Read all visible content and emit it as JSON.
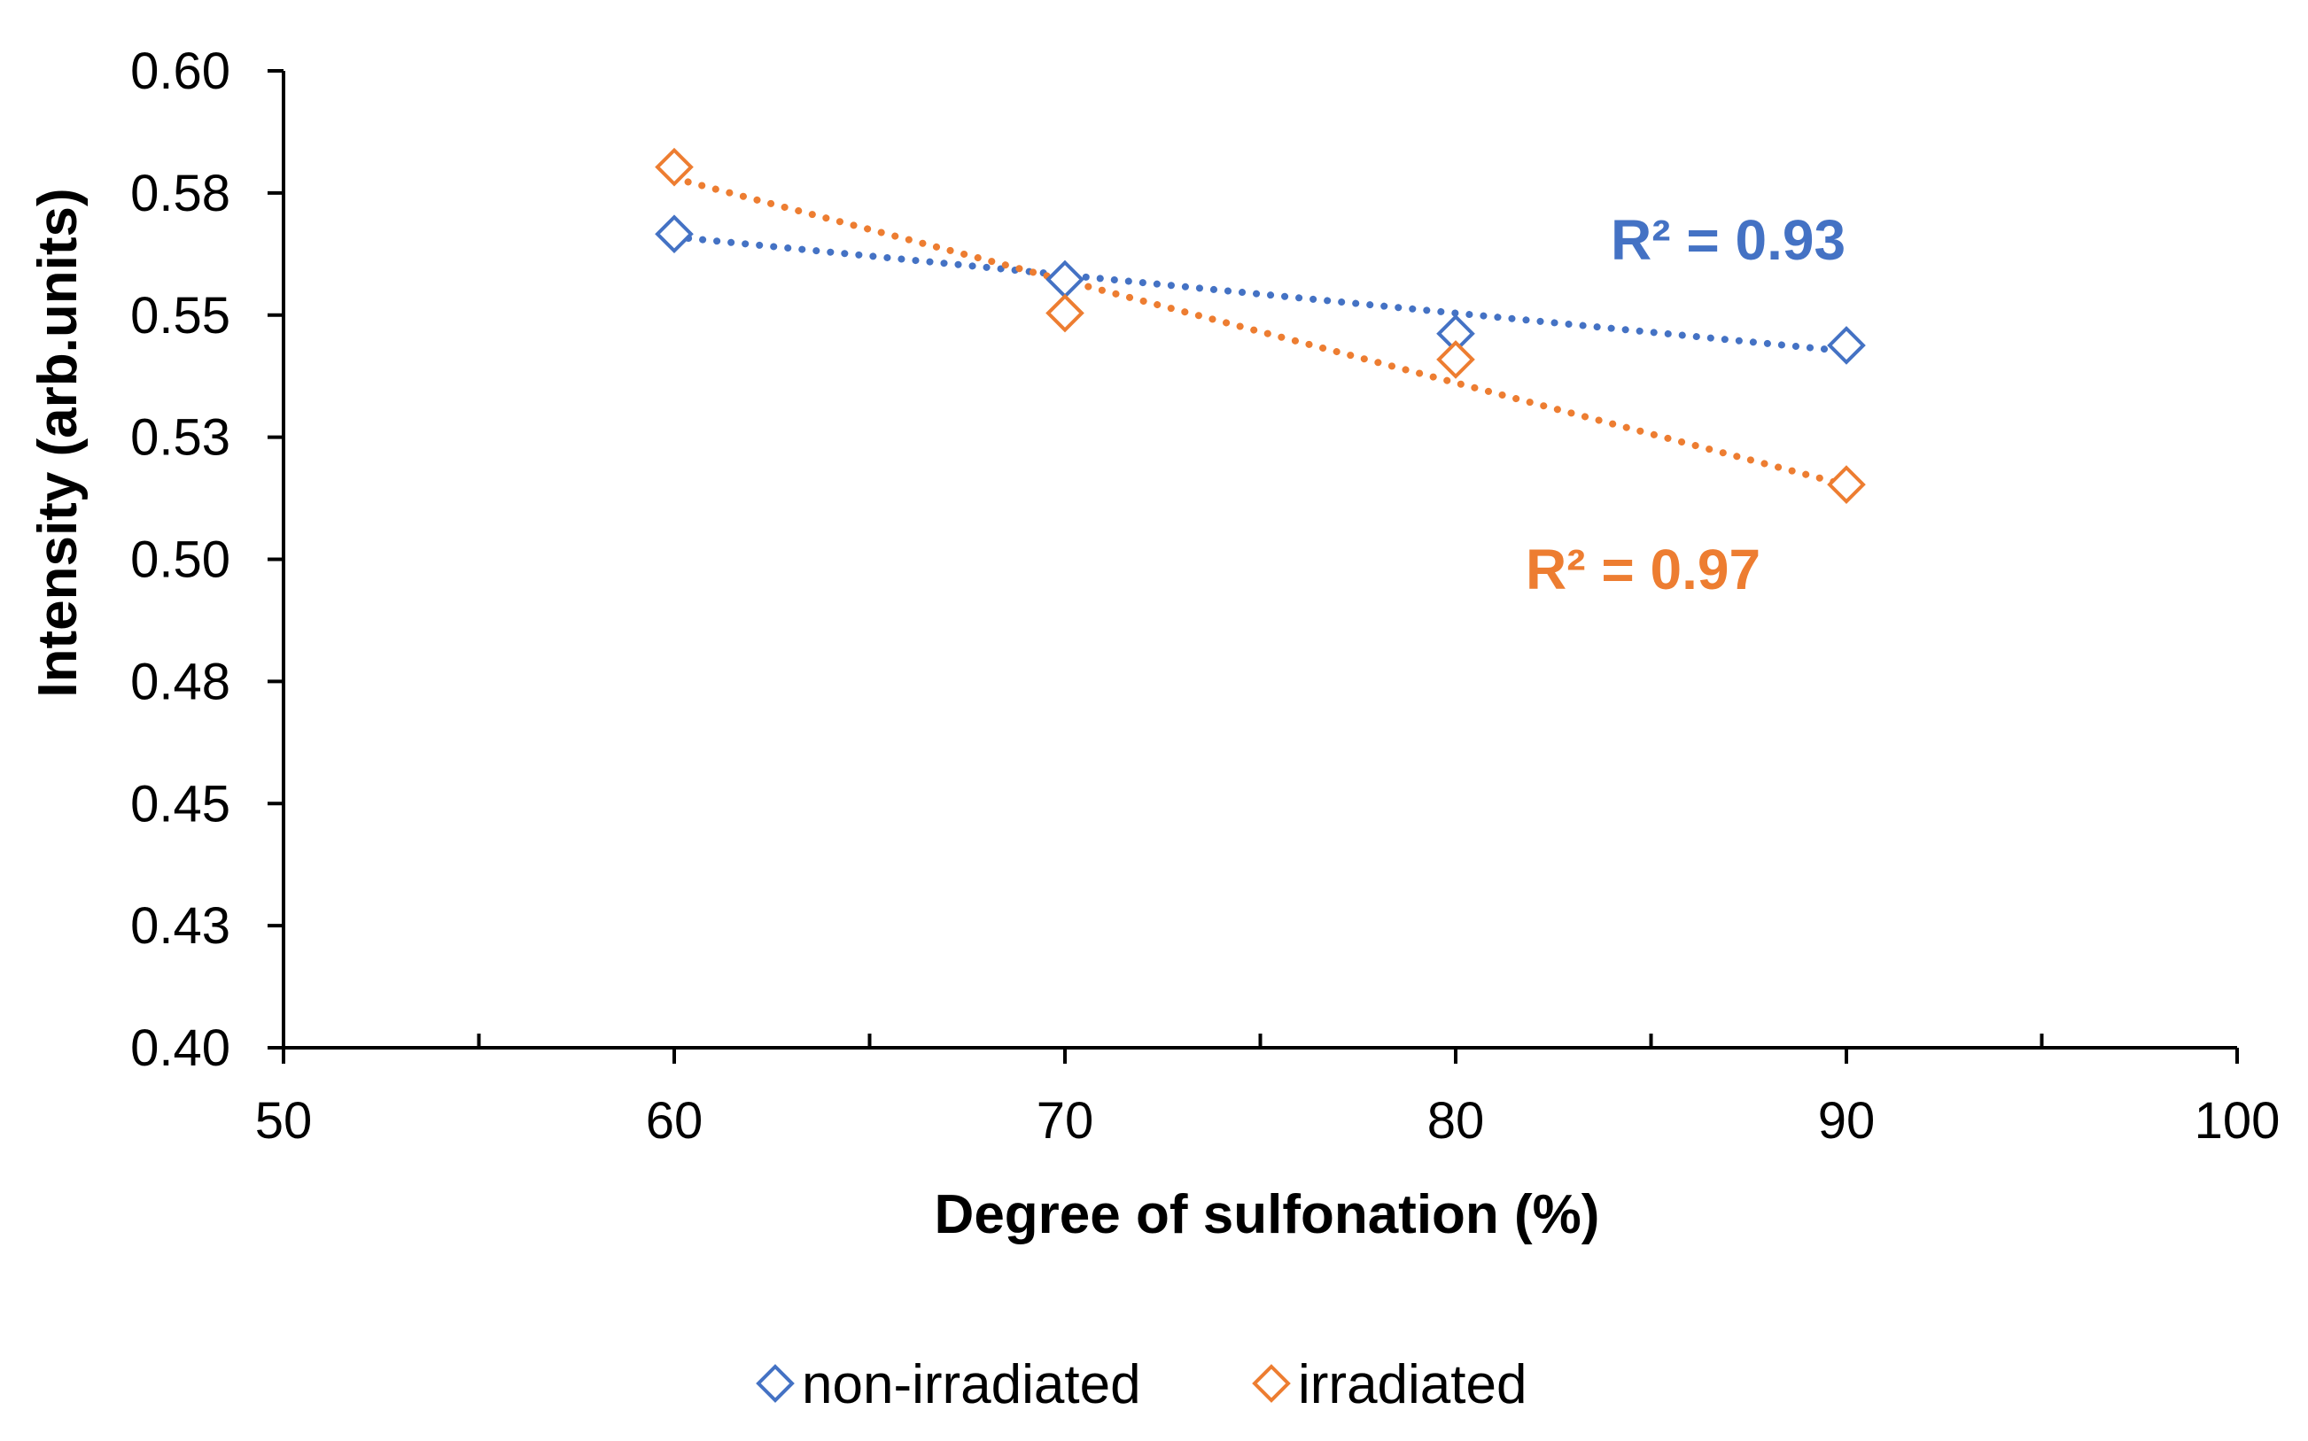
{
  "chart_data": {
    "type": "scatter",
    "title": "",
    "xlabel": "Degree of sulfonation (%)",
    "ylabel": "Intensity (arb.units)",
    "xlim": [
      50,
      100
    ],
    "ylim": [
      0.4,
      0.6
    ],
    "x_ticks": [
      50,
      60,
      70,
      80,
      90,
      100
    ],
    "x_tick_labels": [
      "50",
      "60",
      "70",
      "80",
      "90",
      "100"
    ],
    "x_minor_ticks": [
      55,
      65,
      75,
      85,
      95
    ],
    "y_ticks": [
      0.4,
      0.425,
      0.45,
      0.475,
      0.5,
      0.525,
      0.55,
      0.575,
      0.6
    ],
    "y_tick_labels": [
      "0.40",
      "0.43",
      "0.45",
      "0.48",
      "0.50",
      "0.53",
      "0.55",
      "0.58",
      "0.60"
    ],
    "grid": false,
    "legend_position": "bottom",
    "series": [
      {
        "name": "non-irradiated",
        "color": "#4472C4",
        "marker": "diamond-open",
        "x": [
          60,
          70,
          80,
          90
        ],
        "y": [
          0.5666,
          0.5573,
          0.5462,
          0.5438
        ],
        "trendline": {
          "type": "linear",
          "from": [
            60,
            0.566
          ],
          "to": [
            90,
            0.5426
          ],
          "r2_label": "R² = 0.93"
        }
      },
      {
        "name": "irradiated",
        "color": "#ED7D31",
        "marker": "diamond-open",
        "x": [
          60,
          70,
          80,
          90
        ],
        "y": [
          0.5803,
          0.5504,
          0.5409,
          0.5153
        ],
        "trendline": {
          "type": "linear",
          "from": [
            60,
            0.578
          ],
          "to": [
            90,
            0.5152
          ],
          "r2_label": "R² = 0.97"
        }
      }
    ]
  }
}
